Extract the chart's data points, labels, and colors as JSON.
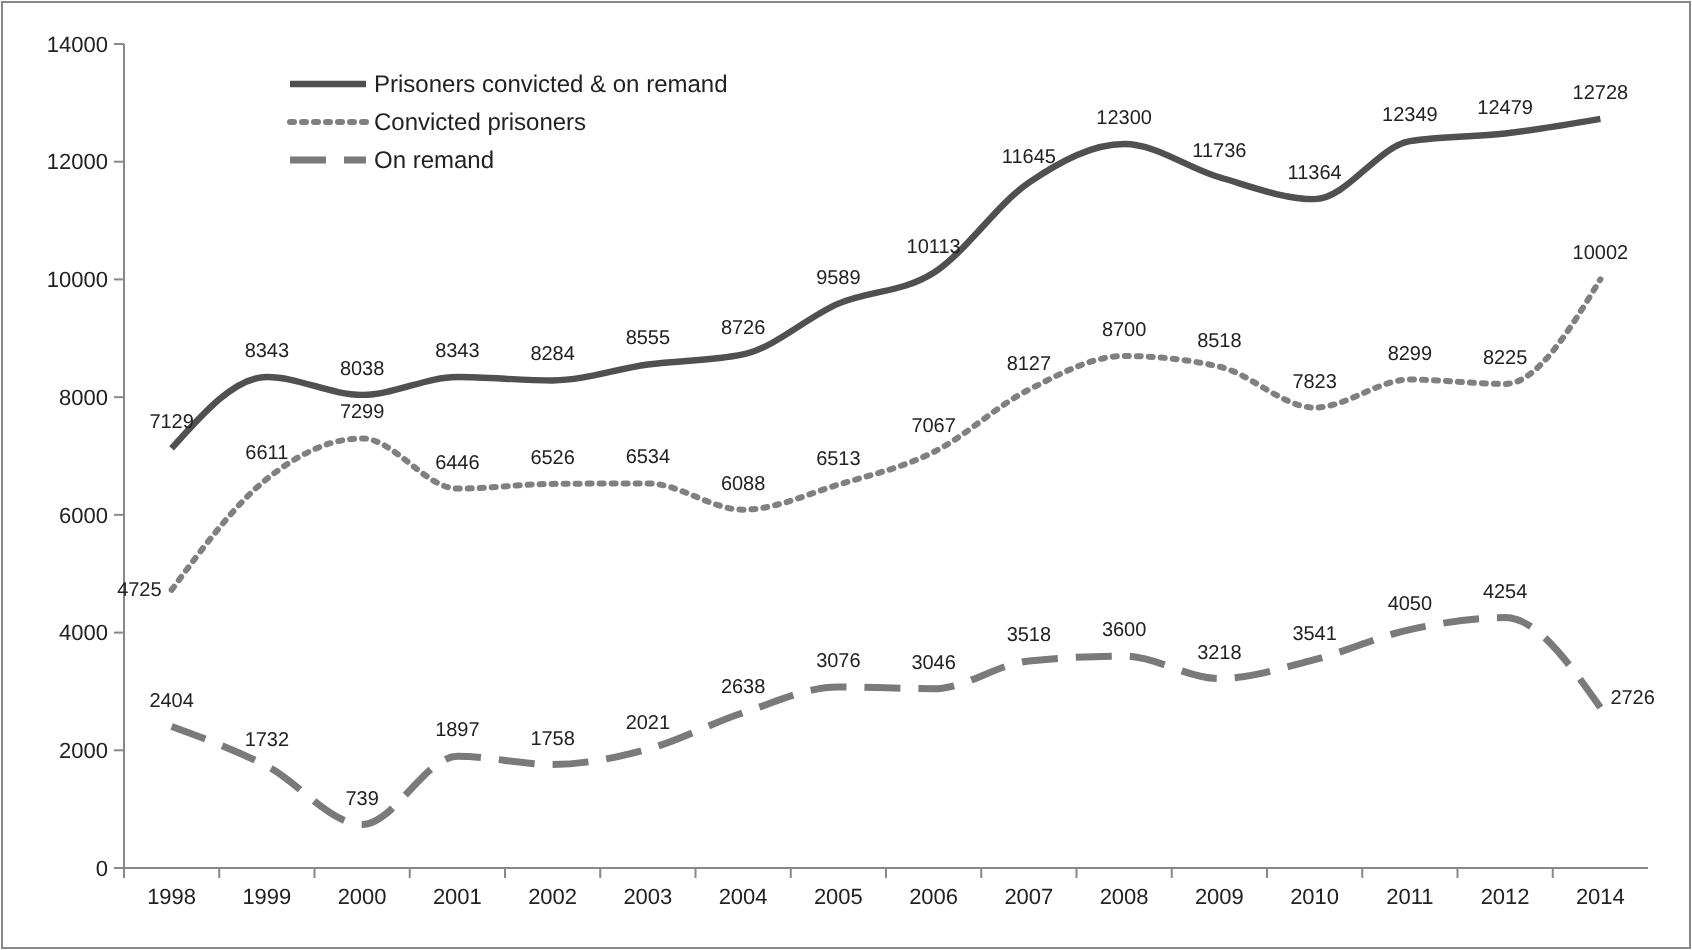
{
  "chart_data": {
    "type": "line",
    "categories": [
      "1998",
      "1999",
      "2000",
      "2001",
      "2002",
      "2003",
      "2004",
      "2005",
      "2006",
      "2007",
      "2008",
      "2009",
      "2010",
      "2011",
      "2012",
      "2014"
    ],
    "series": [
      {
        "name": "Prisoners convicted & on remand",
        "color": "#505050",
        "line_style": "solid",
        "values": [
          7129,
          8343,
          8038,
          8343,
          8284,
          8555,
          8726,
          9589,
          10113,
          11645,
          12300,
          11736,
          11364,
          12349,
          12479,
          12728
        ]
      },
      {
        "name": "Convicted prisoners",
        "color": "#808080",
        "line_style": "dotted",
        "values": [
          4725,
          6611,
          7299,
          6446,
          6526,
          6534,
          6088,
          6513,
          7067,
          8127,
          8700,
          8518,
          7823,
          8299,
          8225,
          10002
        ]
      },
      {
        "name": "On remand",
        "color": "#7a7a7a",
        "line_style": "dashed",
        "values": [
          2404,
          1732,
          739,
          1897,
          1758,
          2021,
          2638,
          3076,
          3046,
          3518,
          3600,
          3218,
          3541,
          4050,
          4254,
          2726
        ]
      }
    ],
    "ylim": [
      0,
      14000
    ],
    "yticks": [
      0,
      2000,
      4000,
      6000,
      8000,
      10000,
      12000,
      14000
    ],
    "grid": false,
    "legend": "top left",
    "data_labels": true,
    "marker": "none"
  }
}
